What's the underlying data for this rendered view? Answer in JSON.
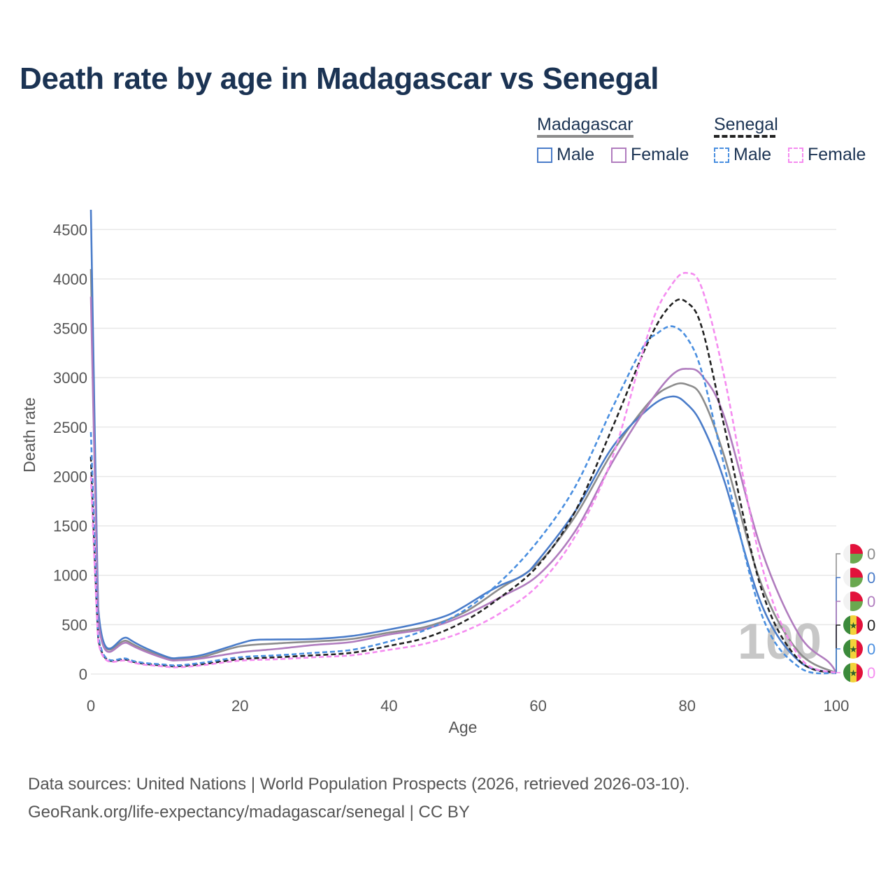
{
  "chart_data": {
    "type": "line",
    "title": "Death rate by age in Madagascar vs Senegal",
    "xlabel": "Age",
    "ylabel": "Death rate",
    "xlim": [
      0,
      100
    ],
    "ylim": [
      0,
      4700
    ],
    "x_ticks": [
      0,
      20,
      40,
      60,
      80,
      100
    ],
    "y_ticks": [
      0,
      500,
      1000,
      1500,
      2000,
      2500,
      3000,
      3500,
      4000,
      4500
    ],
    "grid": true,
    "year_watermark": "100",
    "legend": {
      "groups": [
        {
          "title": "Madagascar",
          "items": [
            "Male",
            "Female"
          ]
        },
        {
          "title": "Senegal",
          "items": [
            "Male",
            "Female"
          ]
        }
      ]
    },
    "series": [
      {
        "name": "Madagascar total",
        "country": "Madagascar",
        "sex": "Total",
        "color": "#8c8c8c",
        "dashed": false,
        "end_value": "0",
        "x": [
          0,
          1,
          5,
          10,
          12,
          15,
          20,
          25,
          30,
          35,
          40,
          45,
          50,
          55,
          60,
          65,
          70,
          75,
          78,
          80,
          82,
          85,
          90,
          95,
          100
        ],
        "y": [
          4100,
          590,
          330,
          165,
          150,
          175,
          280,
          310,
          330,
          355,
          420,
          480,
          620,
          870,
          1120,
          1600,
          2250,
          2760,
          2920,
          2930,
          2800,
          2200,
          900,
          220,
          10
        ]
      },
      {
        "name": "Madagascar male",
        "country": "Madagascar",
        "sex": "Male",
        "color": "#4a7cc9",
        "dashed": false,
        "end_value": "0",
        "x": [
          0,
          1,
          5,
          10,
          12,
          15,
          20,
          22,
          25,
          30,
          35,
          40,
          45,
          48,
          50,
          53,
          55,
          58,
          60,
          65,
          70,
          75,
          78,
          80,
          82,
          85,
          90,
          95,
          100
        ],
        "y": [
          4700,
          650,
          360,
          180,
          165,
          195,
          310,
          345,
          350,
          355,
          385,
          450,
          530,
          600,
          680,
          820,
          900,
          1000,
          1150,
          1650,
          2300,
          2700,
          2810,
          2730,
          2520,
          1950,
          700,
          130,
          10
        ]
      },
      {
        "name": "Madagascar female",
        "country": "Madagascar",
        "sex": "Female",
        "color": "#b07cbe",
        "dashed": false,
        "end_value": "0",
        "x": [
          0,
          1,
          5,
          10,
          12,
          15,
          20,
          25,
          30,
          35,
          40,
          45,
          50,
          55,
          60,
          65,
          70,
          75,
          78,
          80,
          82,
          85,
          90,
          95,
          99,
          100
        ],
        "y": [
          3820,
          540,
          310,
          155,
          140,
          160,
          220,
          255,
          295,
          325,
          400,
          460,
          590,
          780,
          1000,
          1450,
          2150,
          2750,
          3030,
          3090,
          3020,
          2600,
          1250,
          400,
          120,
          10
        ]
      },
      {
        "name": "Senegal total",
        "country": "Senegal",
        "sex": "Total",
        "color": "#222222",
        "dashed": true,
        "end_value": "0",
        "x": [
          0,
          1,
          5,
          10,
          12,
          15,
          20,
          25,
          30,
          35,
          40,
          45,
          50,
          55,
          60,
          65,
          70,
          75,
          78,
          80,
          82,
          85,
          90,
          95,
          100
        ],
        "y": [
          2200,
          350,
          140,
          85,
          80,
          100,
          150,
          170,
          190,
          215,
          285,
          370,
          530,
          780,
          1100,
          1650,
          2500,
          3400,
          3750,
          3760,
          3500,
          2500,
          850,
          140,
          10
        ]
      },
      {
        "name": "Senegal male",
        "country": "Senegal",
        "sex": "Male",
        "color": "#4a8fe0",
        "dashed": true,
        "end_value": "0",
        "x": [
          0,
          1,
          5,
          10,
          12,
          15,
          20,
          25,
          30,
          35,
          40,
          45,
          50,
          55,
          60,
          65,
          70,
          74,
          76,
          78,
          80,
          82,
          85,
          90,
          95,
          100
        ],
        "y": [
          2450,
          380,
          150,
          95,
          90,
          115,
          170,
          190,
          215,
          245,
          330,
          450,
          640,
          940,
          1350,
          1900,
          2700,
          3300,
          3450,
          3520,
          3400,
          3050,
          2100,
          600,
          70,
          10
        ]
      },
      {
        "name": "Senegal female",
        "country": "Senegal",
        "sex": "Female",
        "color": "#f58cf0",
        "dashed": true,
        "end_value": "0",
        "x": [
          0,
          1,
          5,
          10,
          12,
          15,
          20,
          25,
          30,
          35,
          40,
          45,
          50,
          55,
          60,
          65,
          70,
          75,
          78,
          80,
          82,
          85,
          90,
          95,
          100
        ],
        "y": [
          2000,
          320,
          130,
          75,
          70,
          90,
          135,
          150,
          170,
          190,
          245,
          310,
          430,
          620,
          900,
          1400,
          2200,
          3500,
          3950,
          4060,
          3900,
          3000,
          1100,
          180,
          10
        ]
      }
    ]
  },
  "footer": {
    "line1": "Data sources: United Nations | World Population Prospects (2026, retrieved 2026-03-10).",
    "line2": "GeoRank.org/life-expectancy/madagascar/senegal | CC BY"
  }
}
